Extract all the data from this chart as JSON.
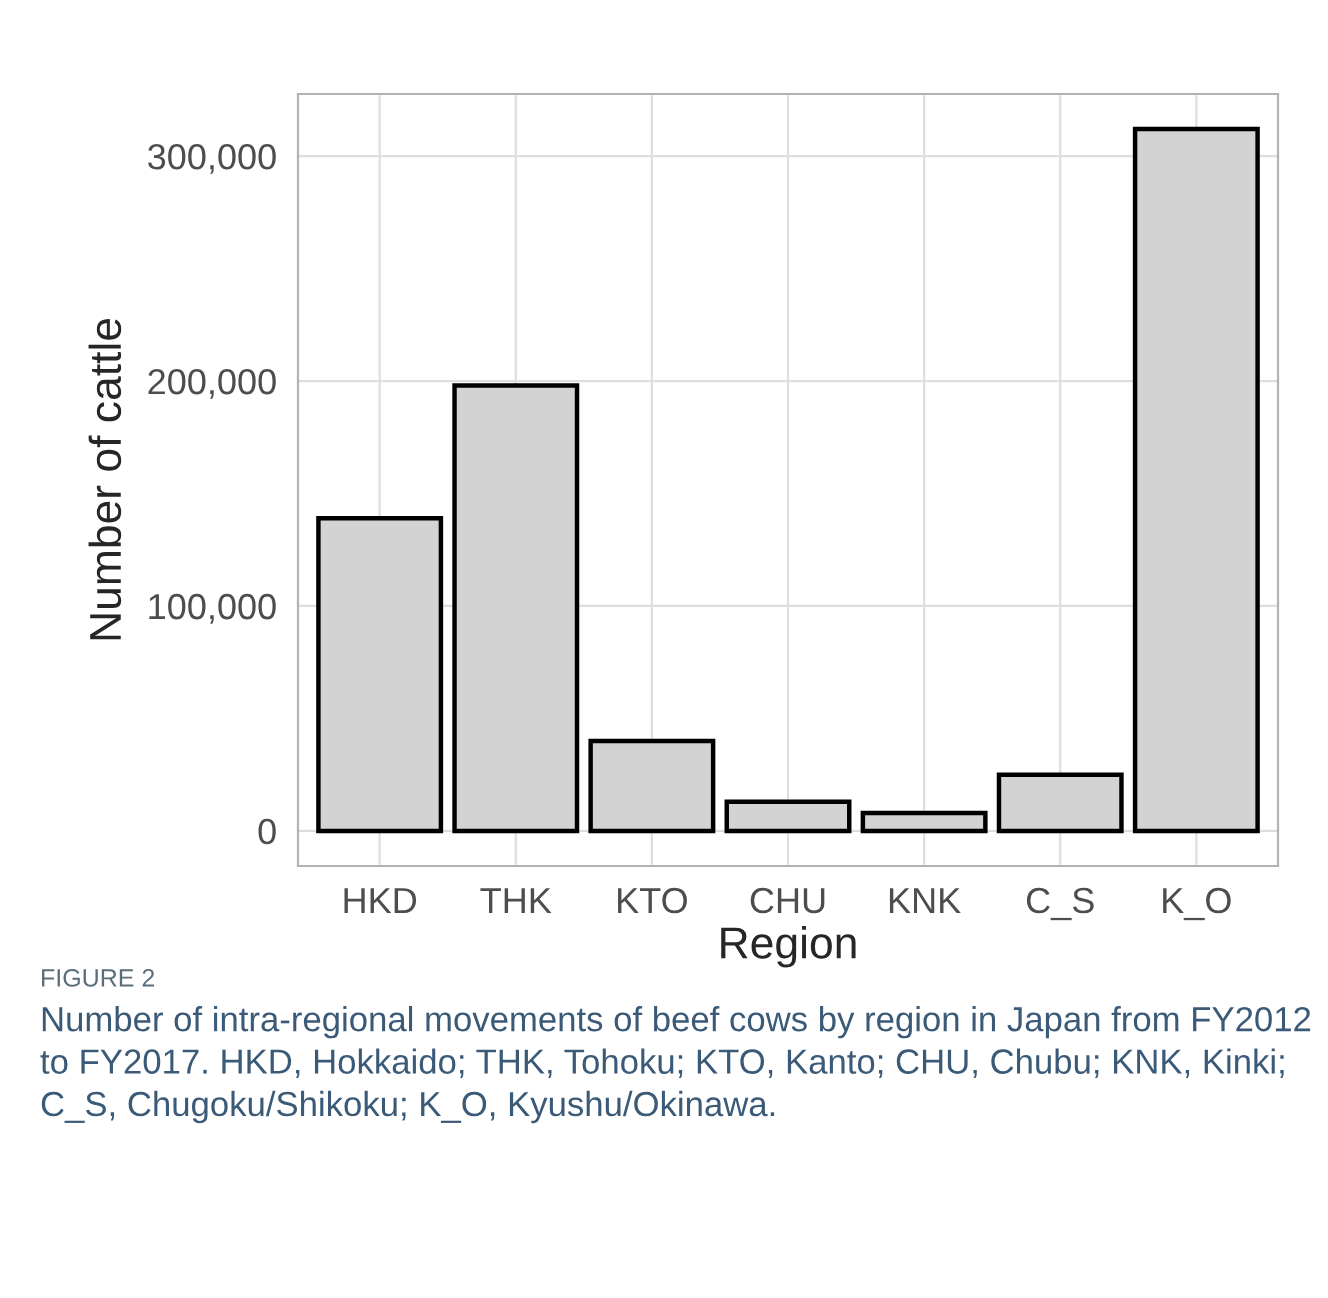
{
  "chart_data": {
    "type": "bar",
    "xlabel": "Region",
    "ylabel": "Number of cattle",
    "categories": [
      "HKD",
      "THK",
      "KTO",
      "CHU",
      "KNK",
      "C_S",
      "K_O"
    ],
    "values": [
      139000,
      198000,
      40000,
      13000,
      8000,
      25000,
      312000
    ],
    "color": "#d3d3d3",
    "ylim": [
      -15600,
      327600
    ],
    "yticks": [
      {
        "value": 0,
        "label": "0"
      },
      {
        "value": 100000,
        "label": "100,000"
      },
      {
        "value": 200000,
        "label": "200,000"
      },
      {
        "value": 300000,
        "label": "300,000"
      }
    ],
    "grid": true,
    "annotations": [
      "FIGURE 2",
      "Number of intra-regional movements of beef cows by region in Japan from FY2012 to FY2017. HKD, Hokkaido; THK, Tohoku; KTO, Kanto; CHU, Chubu; KNK, Kinki; C_S, Chugoku/Shikoku; K_O, Kyushu/Okinawa."
    ]
  }
}
